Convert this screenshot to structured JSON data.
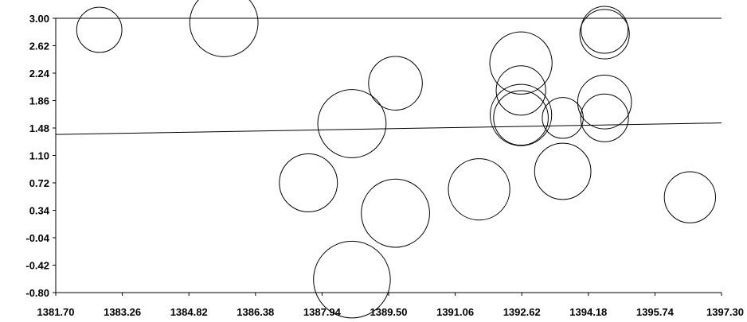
{
  "chart_data": {
    "type": "scatter",
    "subtype": "bubble",
    "title": "",
    "xlabel": "",
    "ylabel": "",
    "xlim": [
      1381.7,
      1397.3
    ],
    "ylim": [
      -0.8,
      3.0
    ],
    "x_ticks": [
      "1381.70",
      "1383.26",
      "1384.82",
      "1386.38",
      "1387.94",
      "1389.50",
      "1391.06",
      "1392.62",
      "1394.18",
      "1395.74",
      "1397.30"
    ],
    "y_ticks": [
      "3.00",
      "2.62",
      "2.24",
      "1.86",
      "1.48",
      "1.10",
      "0.72",
      "0.34",
      "-0.04",
      "-0.42",
      "-0.80"
    ],
    "grid": false,
    "legend": "none",
    "series": [
      {
        "points": [
          {
            "x": 1382.72,
            "y": 2.84,
            "r": 0.53
          },
          {
            "x": 1385.64,
            "y": 2.94,
            "r": 0.8
          },
          {
            "x": 1387.62,
            "y": 0.72,
            "r": 0.68
          },
          {
            "x": 1388.64,
            "y": 1.54,
            "r": 0.8
          },
          {
            "x": 1388.64,
            "y": -0.62,
            "r": 0.9
          },
          {
            "x": 1389.66,
            "y": 2.1,
            "r": 0.63
          },
          {
            "x": 1389.66,
            "y": 0.3,
            "r": 0.8
          },
          {
            "x": 1391.62,
            "y": 0.63,
            "r": 0.72
          },
          {
            "x": 1392.6,
            "y": 2.38,
            "r": 0.73
          },
          {
            "x": 1392.6,
            "y": 2.0,
            "r": 0.58
          },
          {
            "x": 1392.6,
            "y": 1.66,
            "r": 0.72
          },
          {
            "x": 1392.6,
            "y": 1.62,
            "r": 0.64
          },
          {
            "x": 1393.58,
            "y": 1.62,
            "r": 0.48
          },
          {
            "x": 1393.58,
            "y": 0.88,
            "r": 0.66
          },
          {
            "x": 1394.56,
            "y": 2.78,
            "r": 0.58
          },
          {
            "x": 1394.56,
            "y": 2.84,
            "r": 0.55
          },
          {
            "x": 1394.56,
            "y": 1.84,
            "r": 0.63
          },
          {
            "x": 1394.56,
            "y": 1.62,
            "r": 0.56
          },
          {
            "x": 1396.56,
            "y": 0.52,
            "r": 0.6
          }
        ]
      }
    ],
    "trendline": {
      "x": [
        1381.7,
        1397.3
      ],
      "y": [
        1.39,
        1.55
      ]
    }
  }
}
